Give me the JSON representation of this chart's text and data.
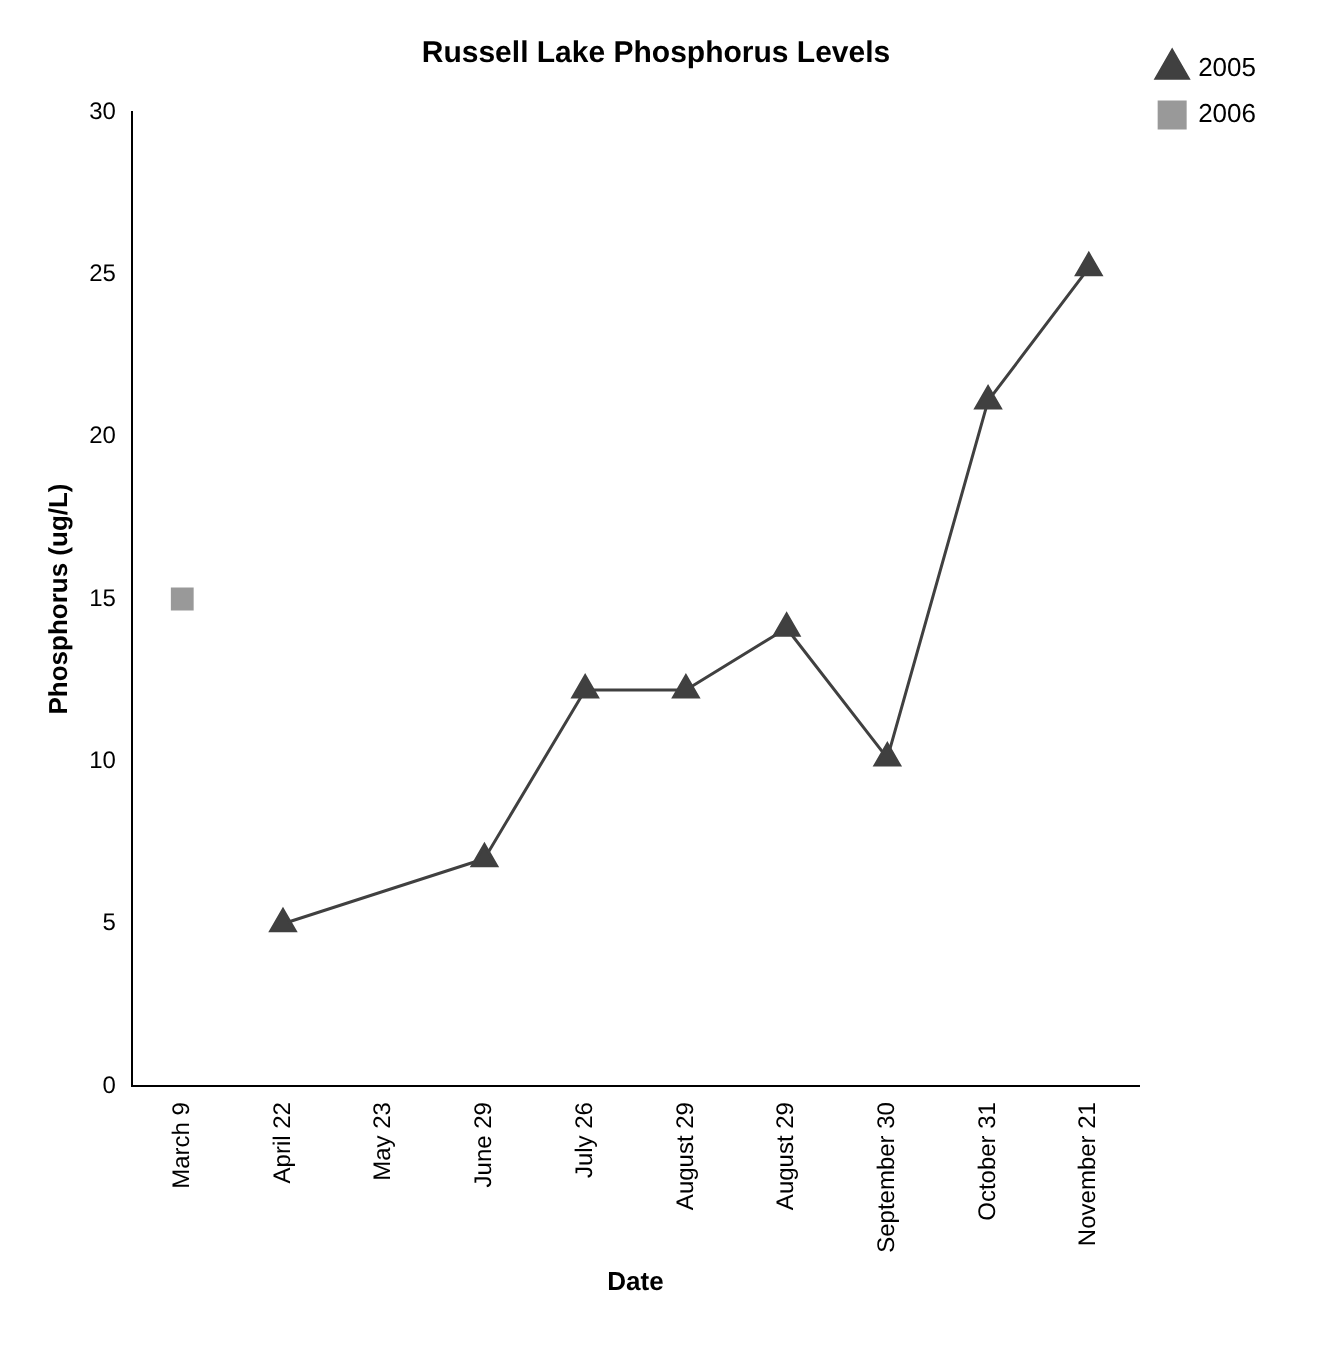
{
  "chart_data": {
    "type": "line",
    "title": "Russell Lake Phosphorus Levels",
    "xlabel": "Date",
    "ylabel": "Phosphorus (ug/L)",
    "categories": [
      "March 9",
      "April 22",
      "May 23",
      "June 29",
      "July 26",
      "August 29",
      "August 29",
      "September 30",
      "October 31",
      "November 21"
    ],
    "series": [
      {
        "name": "2005",
        "color": "#404040",
        "marker": "triangle",
        "line_style": "solid",
        "values": [
          null,
          5.0,
          null,
          7.0,
          12.2,
          12.2,
          14.1,
          10.1,
          21.1,
          25.2
        ]
      },
      {
        "name": "2006",
        "color": "#999999",
        "marker": "square",
        "line_style": "dotted",
        "values": [
          15.0,
          null,
          null,
          null,
          null,
          null,
          null,
          null,
          null,
          null
        ]
      }
    ],
    "ylim": [
      0,
      30
    ],
    "yticks": [
      0,
      5,
      10,
      15,
      20,
      25,
      30
    ],
    "grid": false,
    "legend": "top right"
  }
}
